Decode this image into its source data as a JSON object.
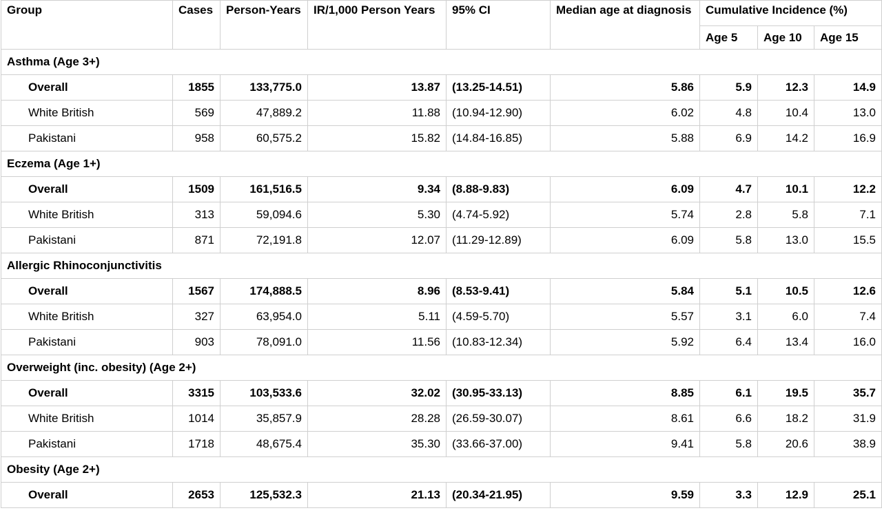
{
  "headers": {
    "group": "Group",
    "cases": "Cases",
    "person_years": "Person-Years",
    "ir": "IR/1,000 Person Years",
    "ci": "95% CI",
    "median_age": "Median age at diagnosis",
    "cumulative": "Cumulative Incidence (%)",
    "age5": "Age 5",
    "age10": "Age 10",
    "age15": "Age 15"
  },
  "sections": [
    {
      "title": "Asthma (Age 3+)",
      "rows": [
        {
          "group": "Overall",
          "cases": "1855",
          "py": "133,775.0",
          "ir": "13.87",
          "ci": "(13.25-14.51)",
          "median": "5.86",
          "a5": "5.9",
          "a10": "12.3",
          "a15": "14.9"
        },
        {
          "group": "White British",
          "cases": "569",
          "py": "47,889.2",
          "ir": "11.88",
          "ci": "(10.94-12.90)",
          "median": "6.02",
          "a5": "4.8",
          "a10": "10.4",
          "a15": "13.0"
        },
        {
          "group": "Pakistani",
          "cases": "958",
          "py": "60,575.2",
          "ir": "15.82",
          "ci": "(14.84-16.85)",
          "median": "5.88",
          "a5": "6.9",
          "a10": "14.2",
          "a15": "16.9"
        }
      ]
    },
    {
      "title": "Eczema (Age 1+)",
      "rows": [
        {
          "group": "Overall",
          "cases": "1509",
          "py": "161,516.5",
          "ir": "9.34",
          "ci": "(8.88-9.83)",
          "median": "6.09",
          "a5": "4.7",
          "a10": "10.1",
          "a15": "12.2"
        },
        {
          "group": "White British",
          "cases": "313",
          "py": "59,094.6",
          "ir": "5.30",
          "ci": "(4.74-5.92)",
          "median": "5.74",
          "a5": "2.8",
          "a10": "5.8",
          "a15": "7.1"
        },
        {
          "group": "Pakistani",
          "cases": "871",
          "py": "72,191.8",
          "ir": "12.07",
          "ci": "(11.29-12.89)",
          "median": "6.09",
          "a5": "5.8",
          "a10": "13.0",
          "a15": "15.5"
        }
      ]
    },
    {
      "title": "Allergic Rhinoconjunctivitis",
      "rows": [
        {
          "group": "Overall",
          "cases": "1567",
          "py": "174,888.5",
          "ir": "8.96",
          "ci": "(8.53-9.41)",
          "median": "5.84",
          "a5": "5.1",
          "a10": "10.5",
          "a15": "12.6"
        },
        {
          "group": "White British",
          "cases": "327",
          "py": "63,954.0",
          "ir": "5.11",
          "ci": "(4.59-5.70)",
          "median": "5.57",
          "a5": "3.1",
          "a10": "6.0",
          "a15": "7.4"
        },
        {
          "group": "Pakistani",
          "cases": "903",
          "py": "78,091.0",
          "ir": "11.56",
          "ci": "(10.83-12.34)",
          "median": "5.92",
          "a5": "6.4",
          "a10": "13.4",
          "a15": "16.0"
        }
      ]
    },
    {
      "title": "Overweight (inc. obesity) (Age 2+)",
      "rows": [
        {
          "group": "Overall",
          "cases": "3315",
          "py": "103,533.6",
          "ir": "32.02",
          "ci": "(30.95-33.13)",
          "median": "8.85",
          "a5": "6.1",
          "a10": "19.5",
          "a15": "35.7"
        },
        {
          "group": "White British",
          "cases": "1014",
          "py": "35,857.9",
          "ir": "28.28",
          "ci": "(26.59-30.07)",
          "median": "8.61",
          "a5": "6.6",
          "a10": "18.2",
          "a15": "31.9"
        },
        {
          "group": "Pakistani",
          "cases": "1718",
          "py": "48,675.4",
          "ir": "35.30",
          "ci": "(33.66-37.00)",
          "median": "9.41",
          "a5": "5.8",
          "a10": "20.6",
          "a15": "38.9"
        }
      ]
    },
    {
      "title": "Obesity (Age 2+)",
      "rows": [
        {
          "group": "Overall",
          "cases": "2653",
          "py": "125,532.3",
          "ir": "21.13",
          "ci": "(20.34-21.95)",
          "median": "9.59",
          "a5": "3.3",
          "a10": "12.9",
          "a15": "25.1"
        }
      ]
    }
  ]
}
